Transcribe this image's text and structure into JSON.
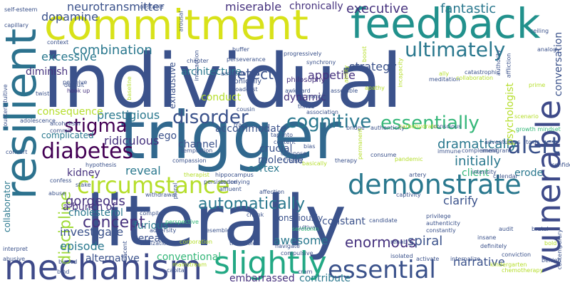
{
  "words": [
    {
      "text": "individual",
      "color": "#3b528b",
      "vertical": false
    },
    {
      "text": "trigger",
      "color": "#31688e",
      "vertical": false
    },
    {
      "text": "literally",
      "color": "#3b528b",
      "vertical": false
    },
    {
      "text": "commitment",
      "color": "#d8e219",
      "vertical": false
    },
    {
      "text": "feedback",
      "color": "#21918c",
      "vertical": false
    },
    {
      "text": "mechanism",
      "color": "#3e4a89",
      "vertical": false
    },
    {
      "text": "resilient",
      "color": "#2c728e",
      "vertical": true
    },
    {
      "text": "vulnerable",
      "color": "#3e4a89",
      "vertical": true
    },
    {
      "text": "circumstance",
      "color": "#b5de2b",
      "vertical": false
    },
    {
      "text": "demonstrate",
      "color": "#2a788e",
      "vertical": false
    },
    {
      "text": "slightly",
      "color": "#22a884",
      "vertical": false
    },
    {
      "text": "essential",
      "color": "#3b528b",
      "vertical": false
    },
    {
      "text": "diabetes",
      "color": "#440154",
      "vertical": false
    },
    {
      "text": "ultimately",
      "color": "#2a788e",
      "vertical": false
    },
    {
      "text": "essentially",
      "color": "#35b779",
      "vertical": false
    },
    {
      "text": "cognitive",
      "color": "#2a788e",
      "vertical": false
    },
    {
      "text": "alert",
      "color": "#3b528b",
      "vertical": false
    },
    {
      "text": "automatically",
      "color": "#2a788e",
      "vertical": false
    },
    {
      "text": "discipline",
      "color": "#a0da39",
      "vertical": true
    },
    {
      "text": "disorder",
      "color": "#3b528b",
      "vertical": false
    },
    {
      "text": "stigma",
      "color": "#440154",
      "vertical": false
    },
    {
      "text": "concept",
      "color": "#46327e",
      "vertical": false
    },
    {
      "text": "combination",
      "color": "#2a788e",
      "vertical": false
    },
    {
      "text": "executive",
      "color": "#46327e",
      "vertical": false
    },
    {
      "text": "fantastic",
      "color": "#2a788e",
      "vertical": false
    },
    {
      "text": "neurotransmitter",
      "color": "#3b528b",
      "vertical": false
    },
    {
      "text": "dopamine",
      "color": "#3b528b",
      "vertical": false
    },
    {
      "text": "miserable",
      "color": "#46327e",
      "vertical": false
    },
    {
      "text": "chronically",
      "color": "#46327e",
      "vertical": false
    },
    {
      "text": "detect",
      "color": "#3b528b",
      "vertical": false
    },
    {
      "text": "excessive",
      "color": "#2a788e",
      "vertical": false
    },
    {
      "text": "strategy",
      "color": "#3b528b",
      "vertical": false
    },
    {
      "text": "appetite",
      "color": "#46327e",
      "vertical": false
    },
    {
      "text": "architecture",
      "color": "#2a788e",
      "vertical": false
    },
    {
      "text": "dramatically",
      "color": "#2a788e",
      "vertical": false
    },
    {
      "text": "initially",
      "color": "#2a788e",
      "vertical": false
    },
    {
      "text": "enormous",
      "color": "#46327e",
      "vertical": false
    },
    {
      "text": "narrative",
      "color": "#3b528b",
      "vertical": false
    },
    {
      "text": "prestigious",
      "color": "#2a788e",
      "vertical": false
    },
    {
      "text": "ridiculous",
      "color": "#46327e",
      "vertical": false
    },
    {
      "text": "gorgeous",
      "color": "#46327e",
      "vertical": false
    },
    {
      "text": "kidney",
      "color": "#46327e",
      "vertical": false
    },
    {
      "text": "reveal",
      "color": "#2a788e",
      "vertical": false
    },
    {
      "text": "episode",
      "color": "#2a788e",
      "vertical": false
    },
    {
      "text": "investigate",
      "color": "#3b528b",
      "vertical": false
    },
    {
      "text": "cholesterol",
      "color": "#2a788e",
      "vertical": false
    },
    {
      "text": "awesome",
      "color": "#2a788e",
      "vertical": false
    },
    {
      "text": "constant",
      "color": "#3b528b",
      "vertical": false
    },
    {
      "text": "spiral",
      "color": "#3b528b",
      "vertical": false
    },
    {
      "text": "clarify",
      "color": "#3b528b",
      "vertical": false
    },
    {
      "text": "conventional",
      "color": "#35b779",
      "vertical": false
    },
    {
      "text": "alternative",
      "color": "#3b528b",
      "vertical": false
    },
    {
      "text": "embarrassed",
      "color": "#46327e",
      "vertical": false
    },
    {
      "text": "contribute",
      "color": "#2a788e",
      "vertical": false
    },
    {
      "text": "consciously",
      "color": "#3b528b",
      "vertical": false
    },
    {
      "text": "crucial",
      "color": "#3b528b",
      "vertical": false
    },
    {
      "text": "molecule",
      "color": "#3b528b",
      "vertical": false
    },
    {
      "text": "cortex",
      "color": "#2a788e",
      "vertical": false
    },
    {
      "text": "channel",
      "color": "#3b528b",
      "vertical": false
    },
    {
      "text": "accommodate",
      "color": "#3b528b",
      "vertical": false
    },
    {
      "text": "consequence",
      "color": "#b5de2b",
      "vertical": false
    },
    {
      "text": "complicated",
      "color": "#2a788e",
      "vertical": false
    },
    {
      "text": "conduct",
      "color": "#b5de2b",
      "vertical": false
    },
    {
      "text": "dynamic",
      "color": "#46327e",
      "vertical": false
    },
    {
      "text": "conversation",
      "color": "#3b528b",
      "vertical": true
    },
    {
      "text": "psychologist",
      "color": "#b5de2b",
      "vertical": true
    },
    {
      "text": "client",
      "color": "#35b779",
      "vertical": false
    },
    {
      "text": "erode",
      "color": "#2a788e",
      "vertical": false
    },
    {
      "text": "furious",
      "color": "#2a788e",
      "vertical": false
    },
    {
      "text": "cereal",
      "color": "#3b528b",
      "vertical": false
    },
    {
      "text": "a bunch of",
      "color": "#46327e",
      "vertical": false
    },
    {
      "text": "diminish",
      "color": "#46327e",
      "vertical": false
    },
    {
      "text": "collaborator",
      "color": "#2a788e",
      "vertical": true
    },
    {
      "text": "ego",
      "color": "#3b528b",
      "vertical": false
    },
    {
      "text": "philosophy",
      "color": "#46327e",
      "vertical": false
    },
    {
      "text": "exhaustive",
      "color": "#3b528b",
      "vertical": true
    },
    {
      "text": "ironically",
      "color": "#3b528b",
      "vertical": false
    },
    {
      "text": "ambition",
      "color": "#3b528b",
      "vertical": false
    },
    {
      "text": "perseverance",
      "color": "#3b528b",
      "vertical": false
    },
    {
      "text": "chapter",
      "color": "#3b528b",
      "vertical": false
    },
    {
      "text": "interaction",
      "color": "#3b528b",
      "vertical": true
    },
    {
      "text": "obstacle",
      "color": "#3b528b",
      "vertical": false
    },
    {
      "text": "self-esteem",
      "color": "#3b528b",
      "vertical": false
    },
    {
      "text": "capillary",
      "color": "#3b528b",
      "vertical": false
    },
    {
      "text": "arousal",
      "color": "#3b528b",
      "vertical": true
    },
    {
      "text": "progressively",
      "color": "#3b528b",
      "vertical": false
    },
    {
      "text": "buffer",
      "color": "#3b528b",
      "vertical": false
    },
    {
      "text": "context",
      "color": "#3b528b",
      "vertical": false
    },
    {
      "text": "perceive",
      "color": "#3b528b",
      "vertical": false
    },
    {
      "text": "twist",
      "color": "#3b528b",
      "vertical": false
    },
    {
      "text": "hook up",
      "color": "#46327e",
      "vertical": false
    },
    {
      "text": "default",
      "color": "#3b528b",
      "vertical": false
    },
    {
      "text": "meditation",
      "color": "#3b528b",
      "vertical": false
    },
    {
      "text": "collaboration",
      "color": "#b5de2b",
      "vertical": false
    },
    {
      "text": "ally",
      "color": "#b5de2b",
      "vertical": false
    },
    {
      "text": "analogy",
      "color": "#3b528b",
      "vertical": false
    },
    {
      "text": "prime",
      "color": "#b5de2b",
      "vertical": false
    },
    {
      "text": "catastrophic",
      "color": "#3b528b",
      "vertical": false
    },
    {
      "text": "apathy",
      "color": "#b5de2b",
      "vertical": false
    },
    {
      "text": "assemble",
      "color": "#3b528b",
      "vertical": false
    },
    {
      "text": "mantra",
      "color": "#3b528b",
      "vertical": false
    },
    {
      "text": "association",
      "color": "#3b528b",
      "vertical": false
    },
    {
      "text": "thrive",
      "color": "#3b528b",
      "vertical": false
    },
    {
      "text": "broadcast",
      "color": "#3b528b",
      "vertical": false
    },
    {
      "text": "awkward",
      "color": "#3b528b",
      "vertical": false
    },
    {
      "text": "cousin",
      "color": "#3b528b",
      "vertical": false
    },
    {
      "text": "bridge",
      "color": "#3b528b",
      "vertical": false
    },
    {
      "text": "authenticity",
      "color": "#3b528b",
      "vertical": false
    },
    {
      "text": "carbohydrate",
      "color": "#b5de2b",
      "vertical": false
    },
    {
      "text": "conscious",
      "color": "#3b528b",
      "vertical": false
    },
    {
      "text": "alcoholism",
      "color": "#3b528b",
      "vertical": false
    },
    {
      "text": "commit",
      "color": "#3b528b",
      "vertical": false
    },
    {
      "text": "adolescence",
      "color": "#3b528b",
      "vertical": false
    },
    {
      "text": "counterintuitive",
      "color": "#3b528b",
      "vertical": true
    },
    {
      "text": "convert",
      "color": "#3b528b",
      "vertical": false
    },
    {
      "text": "hypothesis",
      "color": "#3b528b",
      "vertical": false
    },
    {
      "text": "track",
      "color": "#3b528b",
      "vertical": false
    },
    {
      "text": "tap into",
      "color": "#3b528b",
      "vertical": false
    },
    {
      "text": "content",
      "color": "#3b528b",
      "vertical": false
    },
    {
      "text": "temptation",
      "color": "#3b528b",
      "vertical": false
    },
    {
      "text": "compassion",
      "color": "#3b528b",
      "vertical": false
    },
    {
      "text": "compose",
      "color": "#3b528b",
      "vertical": false
    },
    {
      "text": "bias",
      "color": "#3b528b",
      "vertical": false
    },
    {
      "text": "creepy",
      "color": "#3b528b",
      "vertical": false
    },
    {
      "text": "basically",
      "color": "#b5de2b",
      "vertical": false
    },
    {
      "text": "therapy",
      "color": "#3b528b",
      "vertical": false
    },
    {
      "text": "pandemic",
      "color": "#b5de2b",
      "vertical": false
    },
    {
      "text": "immune",
      "color": "#3b528b",
      "vertical": false
    },
    {
      "text": "complement",
      "color": "#3b528b",
      "vertical": false
    },
    {
      "text": "immigrant",
      "color": "#3b528b",
      "vertical": false
    },
    {
      "text": "growth mindset",
      "color": "#35b779",
      "vertical": false
    },
    {
      "text": "adventurous",
      "color": "#3b528b",
      "vertical": false
    },
    {
      "text": "scenario",
      "color": "#b5de2b",
      "vertical": false
    },
    {
      "text": "toxic",
      "color": "#3b528b",
      "vertical": false
    },
    {
      "text": "confide",
      "color": "#3b528b",
      "vertical": false
    },
    {
      "text": "intensity",
      "color": "#3b528b",
      "vertical": false
    },
    {
      "text": "calendar",
      "color": "#3b528b",
      "vertical": false
    },
    {
      "text": "artery",
      "color": "#3b528b",
      "vertical": false
    },
    {
      "text": "hippocampus",
      "color": "#3b528b",
      "vertical": false
    },
    {
      "text": "underlying",
      "color": "#3b528b",
      "vertical": false
    },
    {
      "text": "affluent",
      "color": "#3b528b",
      "vertical": false
    },
    {
      "text": "stake",
      "color": "#3b528b",
      "vertical": false
    },
    {
      "text": "confess",
      "color": "#3b528b",
      "vertical": false
    },
    {
      "text": "withdrawal",
      "color": "#3b528b",
      "vertical": false
    },
    {
      "text": "persistence",
      "color": "#3b528b",
      "vertical": false
    },
    {
      "text": "affection",
      "color": "#3b528b",
      "vertical": false
    },
    {
      "text": "captivity",
      "color": "#3b528b",
      "vertical": false
    },
    {
      "text": "abuse",
      "color": "#3b528b",
      "vertical": false
    },
    {
      "text": "compile",
      "color": "#3b528b",
      "vertical": false
    },
    {
      "text": "chunk",
      "color": "#3b528b",
      "vertical": false
    },
    {
      "text": "cultivate",
      "color": "#3b528b",
      "vertical": false
    },
    {
      "text": "candidate",
      "color": "#3b528b",
      "vertical": false
    },
    {
      "text": "privilege",
      "color": "#3b528b",
      "vertical": false
    },
    {
      "text": "authenticity",
      "color": "#3b528b",
      "vertical": false
    },
    {
      "text": "constantly",
      "color": "#3b528b",
      "vertical": false
    },
    {
      "text": "audit",
      "color": "#3b528b",
      "vertical": false
    },
    {
      "text": "perspective",
      "color": "#35b779",
      "vertical": false
    },
    {
      "text": "adversity",
      "color": "#3b528b",
      "vertical": false
    },
    {
      "text": "resemble",
      "color": "#3b528b",
      "vertical": false
    },
    {
      "text": "rehab",
      "color": "#3b528b",
      "vertical": false
    },
    {
      "text": "brutal",
      "color": "#3b528b",
      "vertical": false
    },
    {
      "text": "interpret",
      "color": "#3b528b",
      "vertical": false
    },
    {
      "text": "biased",
      "color": "#3b528b",
      "vertical": false
    },
    {
      "text": "bind",
      "color": "#3b528b",
      "vertical": false
    },
    {
      "text": "decent",
      "color": "#3b528b",
      "vertical": true
    },
    {
      "text": "civilization",
      "color": "#3b528b",
      "vertical": false
    },
    {
      "text": "corporation",
      "color": "#b5de2b",
      "vertical": false
    },
    {
      "text": "threshold",
      "color": "#3b528b",
      "vertical": false
    },
    {
      "text": "serotonin",
      "color": "#35b779",
      "vertical": false
    },
    {
      "text": "isolated",
      "color": "#3b528b",
      "vertical": false
    },
    {
      "text": "insane",
      "color": "#3b528b",
      "vertical": false
    },
    {
      "text": "definitely",
      "color": "#3b528b",
      "vertical": false
    },
    {
      "text": "conviction",
      "color": "#3b528b",
      "vertical": false
    },
    {
      "text": "bold",
      "color": "#b5de2b",
      "vertical": false
    },
    {
      "text": "navigate",
      "color": "#3b528b",
      "vertical": false
    },
    {
      "text": "compulsive",
      "color": "#3b528b",
      "vertical": false
    },
    {
      "text": "cram",
      "color": "#3b528b",
      "vertical": false
    },
    {
      "text": "mainstream",
      "color": "#b5de2b",
      "vertical": false
    },
    {
      "text": "capital",
      "color": "#3b528b",
      "vertical": false
    },
    {
      "text": "abusive",
      "color": "#3b528b",
      "vertical": false
    },
    {
      "text": "activate",
      "color": "#3b528b",
      "vertical": false
    },
    {
      "text": "internalize",
      "color": "#3b528b",
      "vertical": false
    },
    {
      "text": "kindergarten",
      "color": "#b5de2b",
      "vertical": false
    },
    {
      "text": "chemotherapy",
      "color": "#b5de2b",
      "vertical": false
    },
    {
      "text": "benign",
      "color": "#3b528b",
      "vertical": false
    },
    {
      "text": "contemporary",
      "color": "#3b528b",
      "vertical": true
    },
    {
      "text": "ceiling",
      "color": "#3b528b",
      "vertical": false
    },
    {
      "text": "authority",
      "color": "#3b528b",
      "vertical": true
    },
    {
      "text": "affliction",
      "color": "#3b528b",
      "vertical": true
    },
    {
      "text": "ability",
      "color": "#b5de2b",
      "vertical": true
    },
    {
      "text": "boost",
      "color": "#b5de2b",
      "vertical": true
    },
    {
      "text": "consume",
      "color": "#3b528b",
      "vertical": false
    },
    {
      "text": "incapacity",
      "color": "#b5de2b",
      "vertical": true
    },
    {
      "text": "permanent",
      "color": "#b5de2b",
      "vertical": true
    },
    {
      "text": "synchrony",
      "color": "#3b528b",
      "vertical": false
    },
    {
      "text": "baseline",
      "color": "#b5de2b",
      "vertical": true
    },
    {
      "text": "therapist",
      "color": "#b5de2b",
      "vertical": false
    },
    {
      "text": "plural",
      "color": "#3b528b",
      "vertical": true
    }
  ]
}
